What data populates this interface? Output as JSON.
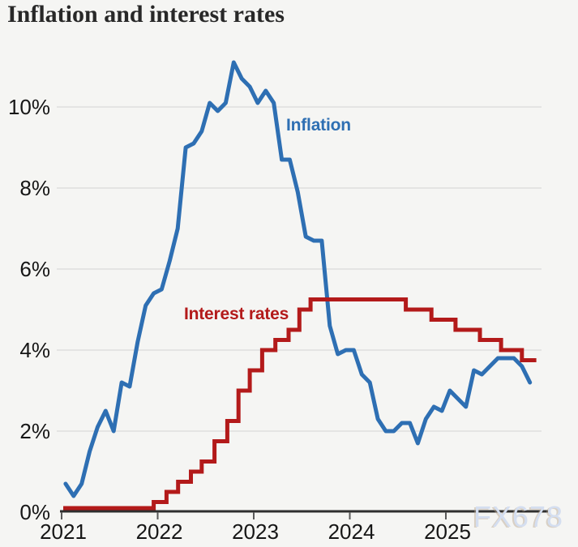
{
  "title": "Inflation and interest rates",
  "watermark": "FX678",
  "colors": {
    "background": "#f5f5f3",
    "inflation_line": "#2e6fb3",
    "interest_line": "#b31a1a",
    "gridline": "#d9d9d9",
    "axis_line": "#2e2e2e",
    "tick_mark": "#5a5a5a",
    "axis_text": "#161616",
    "title_text": "#282828",
    "watermark_text": "#d4def0"
  },
  "chart_data": {
    "type": "line",
    "title": "Inflation and interest rates",
    "xlabel": "",
    "ylabel": "",
    "grid": "horizontal",
    "legend_position": "inline-labels",
    "x_axis": {
      "labels": [
        "2021",
        "2022",
        "2023",
        "2024",
        "2025"
      ],
      "unit": "year"
    },
    "y_axis": {
      "labels": [
        "0%",
        "2%",
        "4%",
        "6%",
        "8%",
        "10%"
      ],
      "tick_values": [
        0,
        2,
        4,
        6,
        8,
        10
      ],
      "range": [
        0,
        11.6
      ]
    },
    "series": [
      {
        "name": "Inflation",
        "color": "#2e6fb3",
        "style": "line",
        "start": "2021-01",
        "frequency": "monthly",
        "values": [
          0.7,
          0.4,
          0.7,
          1.5,
          2.1,
          2.5,
          2.0,
          3.2,
          3.1,
          4.2,
          5.1,
          5.4,
          5.5,
          6.2,
          7.0,
          9.0,
          9.1,
          9.4,
          10.1,
          9.9,
          10.1,
          11.1,
          10.7,
          10.5,
          10.1,
          10.4,
          10.1,
          8.7,
          8.7,
          7.9,
          6.8,
          6.7,
          6.7,
          4.6,
          3.9,
          4.0,
          4.0,
          3.4,
          3.2,
          2.3,
          2.0,
          2.0,
          2.2,
          2.2,
          1.7,
          2.3,
          2.6,
          2.5,
          3.0,
          2.8,
          2.6,
          3.5,
          3.4,
          3.6,
          3.8,
          3.8,
          3.8,
          3.6,
          3.2
        ]
      },
      {
        "name": "Interest rates",
        "color": "#b31a1a",
        "style": "step",
        "t_unit": "months since 2021-01",
        "steps": [
          [
            0.2,
            0.1
          ],
          [
            11.5,
            0.25
          ],
          [
            13.1,
            0.5
          ],
          [
            14.55,
            0.75
          ],
          [
            16.15,
            1.0
          ],
          [
            17.5,
            1.25
          ],
          [
            19.1,
            1.75
          ],
          [
            20.7,
            2.25
          ],
          [
            22.1,
            3.0
          ],
          [
            23.5,
            3.5
          ],
          [
            25.05,
            4.0
          ],
          [
            26.7,
            4.25
          ],
          [
            28.35,
            4.5
          ],
          [
            29.7,
            5.0
          ],
          [
            31.1,
            5.25
          ],
          [
            43.0,
            5.0
          ],
          [
            46.2,
            4.75
          ],
          [
            49.2,
            4.5
          ],
          [
            52.25,
            4.25
          ],
          [
            54.9,
            4.0
          ],
          [
            57.5,
            3.75
          ]
        ],
        "end_t": 59.3
      }
    ]
  }
}
